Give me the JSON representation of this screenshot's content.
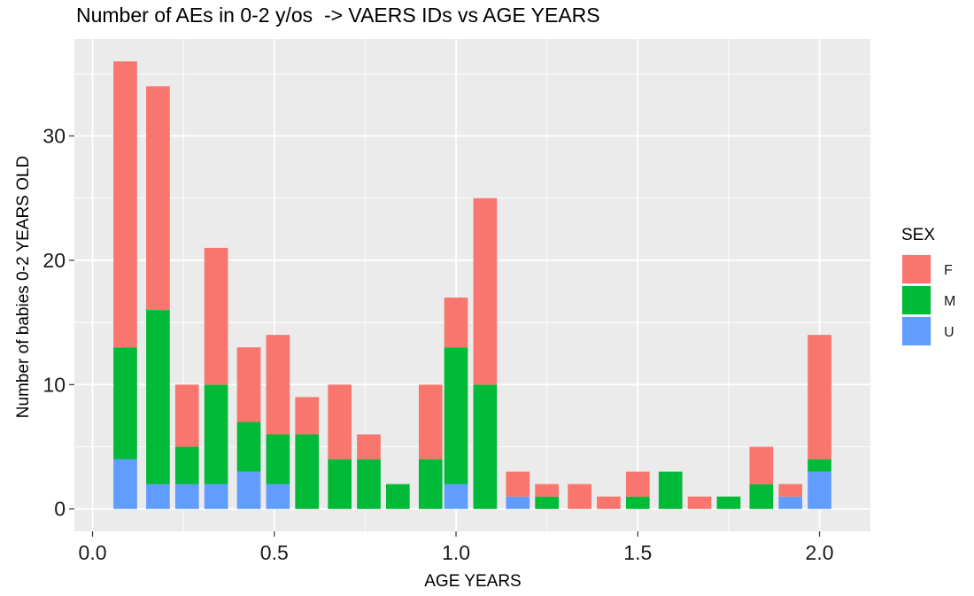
{
  "colors": {
    "panel": "#EBEBEB",
    "grid_major": "#FFFFFF",
    "grid_minor": "#F5F5F5"
  },
  "chart_data": {
    "type": "bar",
    "stacked": true,
    "title": "Number of AEs in 0-2 y/os  -> VAERS IDs vs AGE YEARS",
    "xlabel": "AGE YEARS",
    "ylabel": "Number of babies 0-2 YEARS OLD",
    "xlim": [
      -0.05,
      2.14
    ],
    "ylim": [
      -1.8,
      37.8
    ],
    "bar_width": 0.065,
    "x_ticks": [
      0.0,
      0.5,
      1.0,
      1.5,
      2.0
    ],
    "x_tick_labels": [
      "0.0",
      "0.5",
      "1.0",
      "1.5",
      "2.0"
    ],
    "y_ticks": [
      0,
      10,
      20,
      30
    ],
    "y_tick_labels": [
      "0",
      "10",
      "20",
      "30"
    ],
    "grid": true,
    "legend": {
      "title": "SEX",
      "position": "right",
      "entries": [
        {
          "label": "F",
          "color": "#F8766D"
        },
        {
          "label": "M",
          "color": "#00BA38"
        },
        {
          "label": "U",
          "color": "#619CFF"
        }
      ]
    },
    "x": [
      0.09,
      0.18,
      0.26,
      0.34,
      0.43,
      0.51,
      0.59,
      0.68,
      0.76,
      0.84,
      0.93,
      1.0,
      1.08,
      1.17,
      1.25,
      1.34,
      1.42,
      1.5,
      1.59,
      1.67,
      1.75,
      1.84,
      1.92,
      2.0
    ],
    "series": [
      {
        "name": "U",
        "color": "#619CFF",
        "values": [
          4,
          2,
          2,
          2,
          3,
          2,
          0,
          0,
          0,
          0,
          0,
          2,
          0,
          1,
          0,
          0,
          0,
          0,
          0,
          0,
          0,
          0,
          1,
          3
        ]
      },
      {
        "name": "M",
        "color": "#00BA38",
        "values": [
          9,
          14,
          3,
          8,
          4,
          4,
          6,
          4,
          4,
          2,
          4,
          11,
          10,
          0,
          1,
          0,
          0,
          1,
          3,
          0,
          1,
          2,
          0,
          1
        ]
      },
      {
        "name": "F",
        "color": "#F8766D",
        "values": [
          23,
          18,
          5,
          11,
          6,
          8,
          3,
          6,
          2,
          0,
          6,
          4,
          15,
          2,
          1,
          2,
          1,
          2,
          0,
          1,
          0,
          3,
          1,
          10
        ]
      }
    ]
  }
}
